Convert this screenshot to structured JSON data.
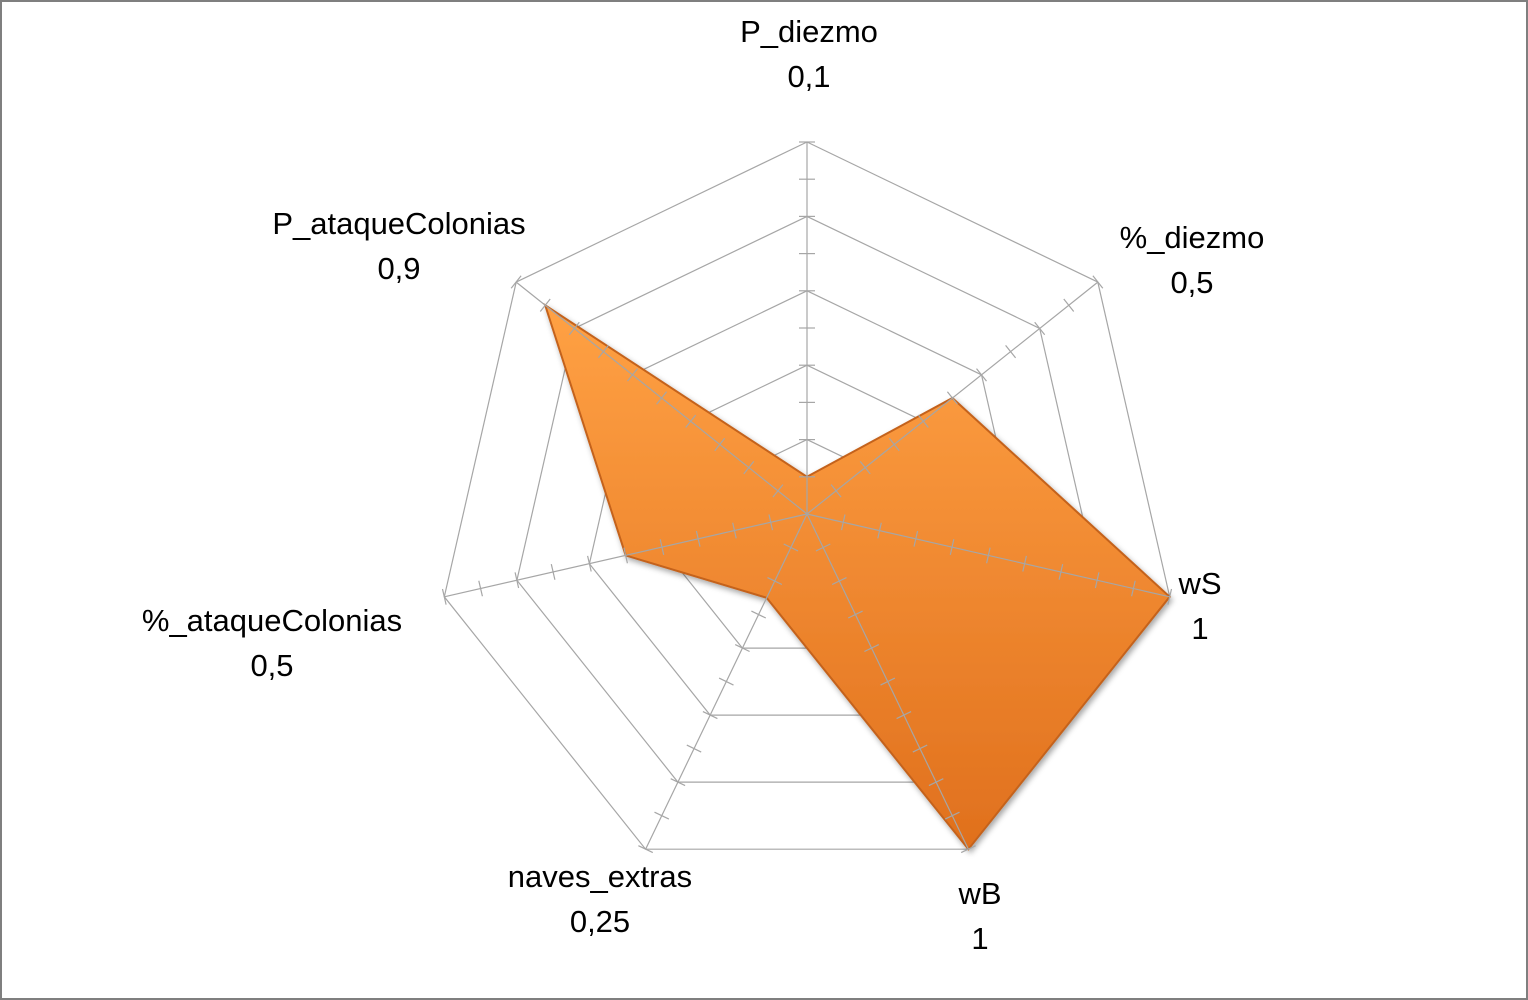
{
  "chart_data": {
    "type": "radar",
    "categories": [
      "P_diezmo",
      "%_diezmo",
      "wS",
      "wB",
      "naves_extras",
      "%_ataqueColonias",
      "P_ataqueColonias"
    ],
    "category_value_labels": [
      "0,1",
      "0,5",
      "1",
      "1",
      "0,25",
      "0,5",
      "0,9"
    ],
    "series": [
      {
        "values": [
          0.1,
          0.5,
          1,
          1,
          0.25,
          0.5,
          0.9
        ],
        "color": "#f7922f"
      }
    ],
    "range": [
      0,
      1
    ],
    "tick_step": 0.1,
    "grid_step": 0.2,
    "grid": true,
    "legend": "none"
  },
  "colors": {
    "fill_top": "#ffa144",
    "fill_bottom": "#e0701d",
    "stroke": "#c4621a",
    "grid": "#a6a6a6",
    "frame": "#7f7f7f"
  }
}
